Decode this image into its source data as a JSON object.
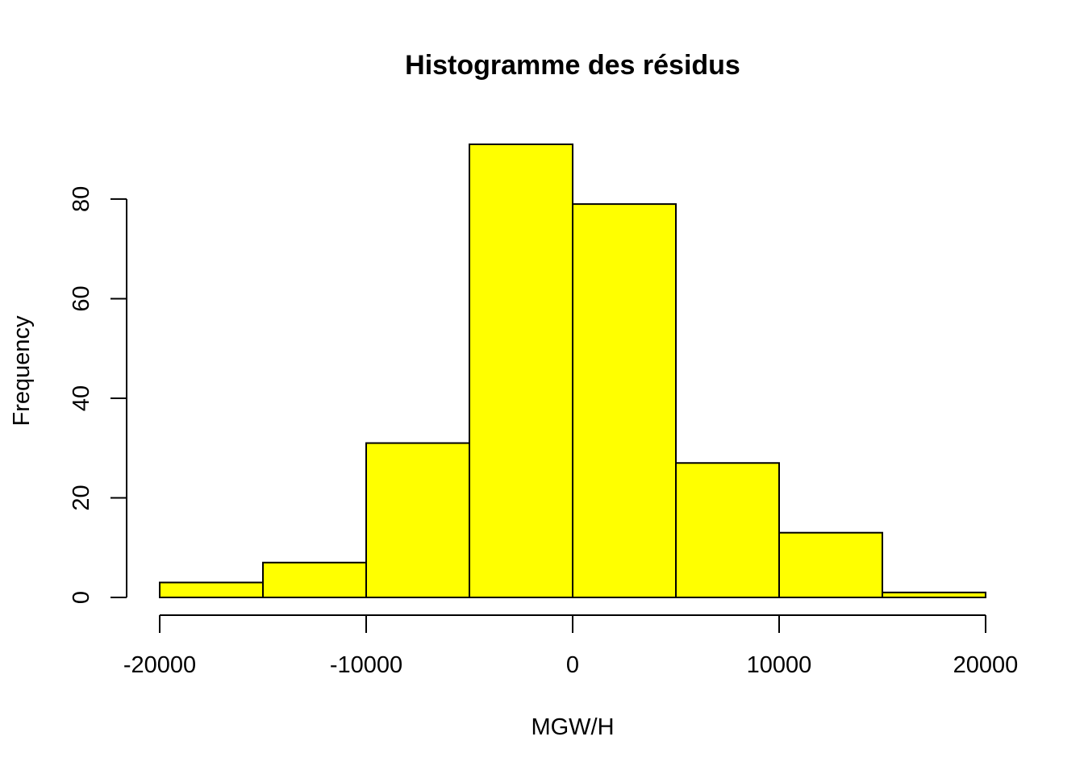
{
  "chart_data": {
    "type": "bar",
    "subtype": "histogram",
    "title": "Histogramme des résidus",
    "xlabel": "MGW/H",
    "ylabel": "Frequency",
    "bin_edges": [
      -20000,
      -15000,
      -10000,
      -5000,
      0,
      5000,
      10000,
      15000,
      20000
    ],
    "values": [
      3,
      7,
      31,
      91,
      79,
      27,
      13,
      1
    ],
    "xlim": [
      -20000,
      20000
    ],
    "ylim": [
      0,
      91
    ],
    "x_ticks": [
      -20000,
      -10000,
      0,
      10000,
      20000
    ],
    "x_tick_labels": [
      "-20000",
      "-10000",
      "0",
      "10000",
      "20000"
    ],
    "y_ticks": [
      0,
      20,
      40,
      60,
      80
    ],
    "y_tick_labels": [
      "0",
      "20",
      "40",
      "60",
      "80"
    ],
    "grid": false,
    "bar_color": "#ffff00",
    "edge_color": "#000000"
  }
}
